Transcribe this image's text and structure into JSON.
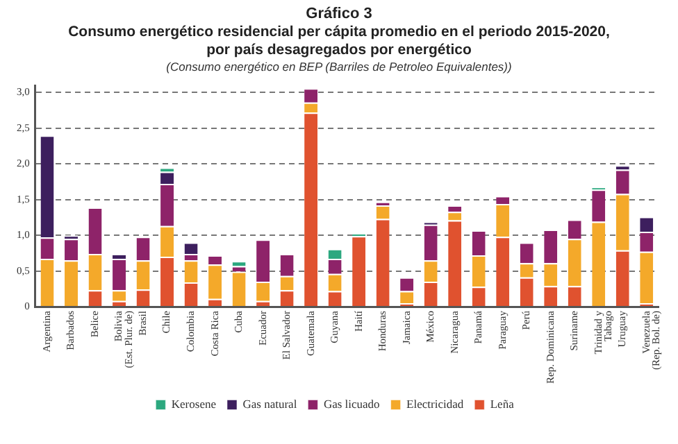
{
  "chart_data": {
    "type": "bar",
    "stacked": true,
    "title": "Gráfico 3",
    "subtitle": "Consumo energético residencial per cápita promedio en el periodo 2015-2020, por país desagregados por energético",
    "annotations": [
      "(Consumo energético en BEP (Barriles de Petroleo Equivalentes))"
    ],
    "categories": [
      "Argentina",
      "Barbados",
      "Belice",
      "Bolivia\n(Est. Plur. de)",
      "Brasil",
      "Chile",
      "Colombia",
      "Costa Rica",
      "Cuba",
      "Ecuador",
      "El Salvador",
      "Guatemala",
      "Guyana",
      "Haití",
      "Honduras",
      "Jamaica",
      "México",
      "Nicaragua",
      "Panamá",
      "Paraguay",
      "Perú",
      "Rep. Dominicana",
      "Suriname",
      "Trinidad y\nTabago",
      "Uruguay",
      "Venezuela\n(Rep. Bol. de)"
    ],
    "series": [
      {
        "name": "Leña",
        "color": "#e0522f",
        "values": [
          null,
          null,
          0.23,
          0.08,
          0.24,
          0.7,
          0.34,
          0.11,
          null,
          0.08,
          0.23,
          2.72,
          0.22,
          0.99,
          1.23,
          0.05,
          0.35,
          1.21,
          0.28,
          0.98,
          0.41,
          0.29,
          0.29,
          null,
          0.79,
          0.05
        ]
      },
      {
        "name": "Electricidad",
        "color": "#f4a92a",
        "values": [
          0.67,
          0.65,
          0.51,
          0.15,
          0.41,
          0.43,
          0.31,
          0.48,
          0.49,
          0.27,
          0.2,
          0.14,
          0.24,
          null,
          0.19,
          0.17,
          0.3,
          0.12,
          0.44,
          0.46,
          0.2,
          0.32,
          0.66,
          1.19,
          0.79,
          0.72
        ]
      },
      {
        "name": "Gas licuado",
        "color": "#8e2369",
        "values": [
          0.3,
          0.3,
          0.65,
          0.44,
          0.33,
          0.59,
          0.09,
          0.13,
          0.08,
          0.59,
          0.31,
          0.2,
          0.21,
          null,
          0.05,
          0.19,
          0.5,
          0.09,
          0.35,
          0.11,
          0.29,
          0.47,
          0.27,
          0.45,
          0.34,
          0.28
        ]
      },
      {
        "name": "Gas natural",
        "color": "#3d1f5e",
        "values": [
          1.43,
          0.05,
          null,
          0.07,
          null,
          0.17,
          0.16,
          null,
          null,
          null,
          null,
          null,
          null,
          null,
          null,
          null,
          0.04,
          null,
          null,
          null,
          null,
          null,
          null,
          null,
          0.06,
          0.21
        ]
      },
      {
        "name": "Kerosene",
        "color": "#2ca87f",
        "values": [
          null,
          null,
          null,
          null,
          null,
          0.06,
          null,
          null,
          0.07,
          null,
          null,
          null,
          0.14,
          0.04,
          null,
          null,
          null,
          null,
          null,
          null,
          null,
          null,
          null,
          0.04,
          null,
          null
        ]
      }
    ],
    "ylim": [
      0,
      3.1
    ],
    "yticks": [
      {
        "value": 0,
        "label": "0"
      },
      {
        "value": 0.5,
        "label": "0,5"
      },
      {
        "value": 1,
        "label": "1,0"
      },
      {
        "value": 1.5,
        "label": "1,5"
      },
      {
        "value": 2,
        "label": "2,0"
      },
      {
        "value": 2.5,
        "label": "2,5"
      },
      {
        "value": 3,
        "label": "3,0"
      }
    ],
    "grid": "y",
    "legend": "bottom"
  }
}
